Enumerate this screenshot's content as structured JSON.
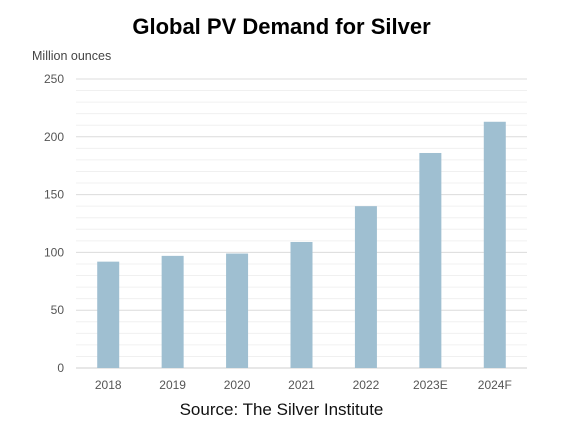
{
  "chart_data": {
    "type": "bar",
    "title": "Global PV Demand for Silver",
    "ylabel": "Million ounces",
    "xlabel": "",
    "categories": [
      "2018",
      "2019",
      "2020",
      "2021",
      "2022",
      "2023E",
      "2024F"
    ],
    "values": [
      92,
      97,
      99,
      109,
      140,
      186,
      213
    ],
    "ylim": [
      0,
      250
    ],
    "yticks": [
      0,
      50,
      100,
      150,
      200,
      250
    ],
    "grid": true,
    "bar_color": "#9fbfd1",
    "source": "Source: The Silver Institute"
  }
}
